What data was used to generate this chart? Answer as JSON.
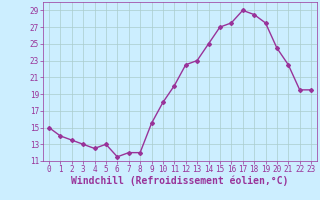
{
  "x": [
    0,
    1,
    2,
    3,
    4,
    5,
    6,
    7,
    8,
    9,
    10,
    11,
    12,
    13,
    14,
    15,
    16,
    17,
    18,
    19,
    20,
    21,
    22,
    23
  ],
  "y": [
    15,
    14,
    13.5,
    13,
    12.5,
    13,
    11.5,
    12,
    12,
    15.5,
    18,
    20,
    22.5,
    23,
    25,
    27,
    27.5,
    29,
    28.5,
    27.5,
    24.5,
    22.5,
    19.5,
    19.5
  ],
  "line_color": "#993399",
  "marker": "D",
  "markersize": 2,
  "linewidth": 1,
  "background_color": "#cceeff",
  "grid_color": "#aacccc",
  "xlabel": "Windchill (Refroidissement éolien,°C)",
  "xlim": [
    -0.5,
    23.5
  ],
  "ylim": [
    11,
    30
  ],
  "yticks": [
    11,
    13,
    15,
    17,
    19,
    21,
    23,
    25,
    27,
    29
  ],
  "xticks": [
    0,
    1,
    2,
    3,
    4,
    5,
    6,
    7,
    8,
    9,
    10,
    11,
    12,
    13,
    14,
    15,
    16,
    17,
    18,
    19,
    20,
    21,
    22,
    23
  ],
  "tick_color": "#993399",
  "tick_fontsize": 5.5,
  "xlabel_fontsize": 7,
  "label_color": "#993399"
}
